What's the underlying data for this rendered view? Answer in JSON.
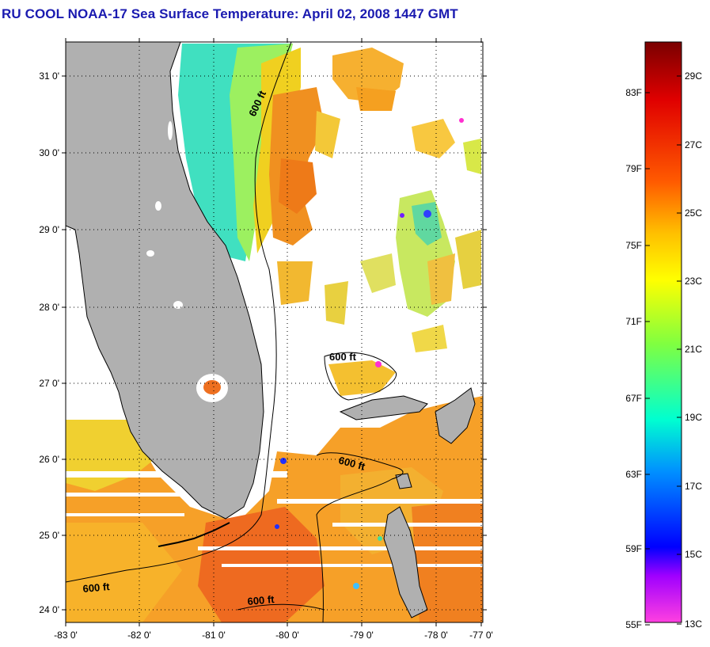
{
  "title": "RU COOL  NOAA-17  Sea Surface Temperature:  April 02, 2008 1447 GMT",
  "map": {
    "lat_ticks": [
      "31 0'",
      "30 0'",
      "29 0'",
      "28 0'",
      "27 0'",
      "26 0'",
      "25 0'",
      "24 0'"
    ],
    "lon_ticks": [
      "-83 0'",
      "-82 0'",
      "-81 0'",
      "-80 0'",
      "-79 0'",
      "-78 0'",
      "-77 0'"
    ],
    "contour_label": "600 ft",
    "land_color": "#b0b0b0"
  },
  "colorbar": {
    "fahrenheit_labels": [
      "83F",
      "79F",
      "75F",
      "71F",
      "67F",
      "63F",
      "59F",
      "55F"
    ],
    "celsius_labels": [
      "29C",
      "27C",
      "25C",
      "23C",
      "21C",
      "19C",
      "17C",
      "15C",
      "13C"
    ],
    "colors": [
      "#7a0000",
      "#e00000",
      "#ff5a00",
      "#ffc000",
      "#ffff00",
      "#80ff40",
      "#00ffd0",
      "#0090ff",
      "#0000ff",
      "#a000ff",
      "#ff40e0"
    ]
  }
}
